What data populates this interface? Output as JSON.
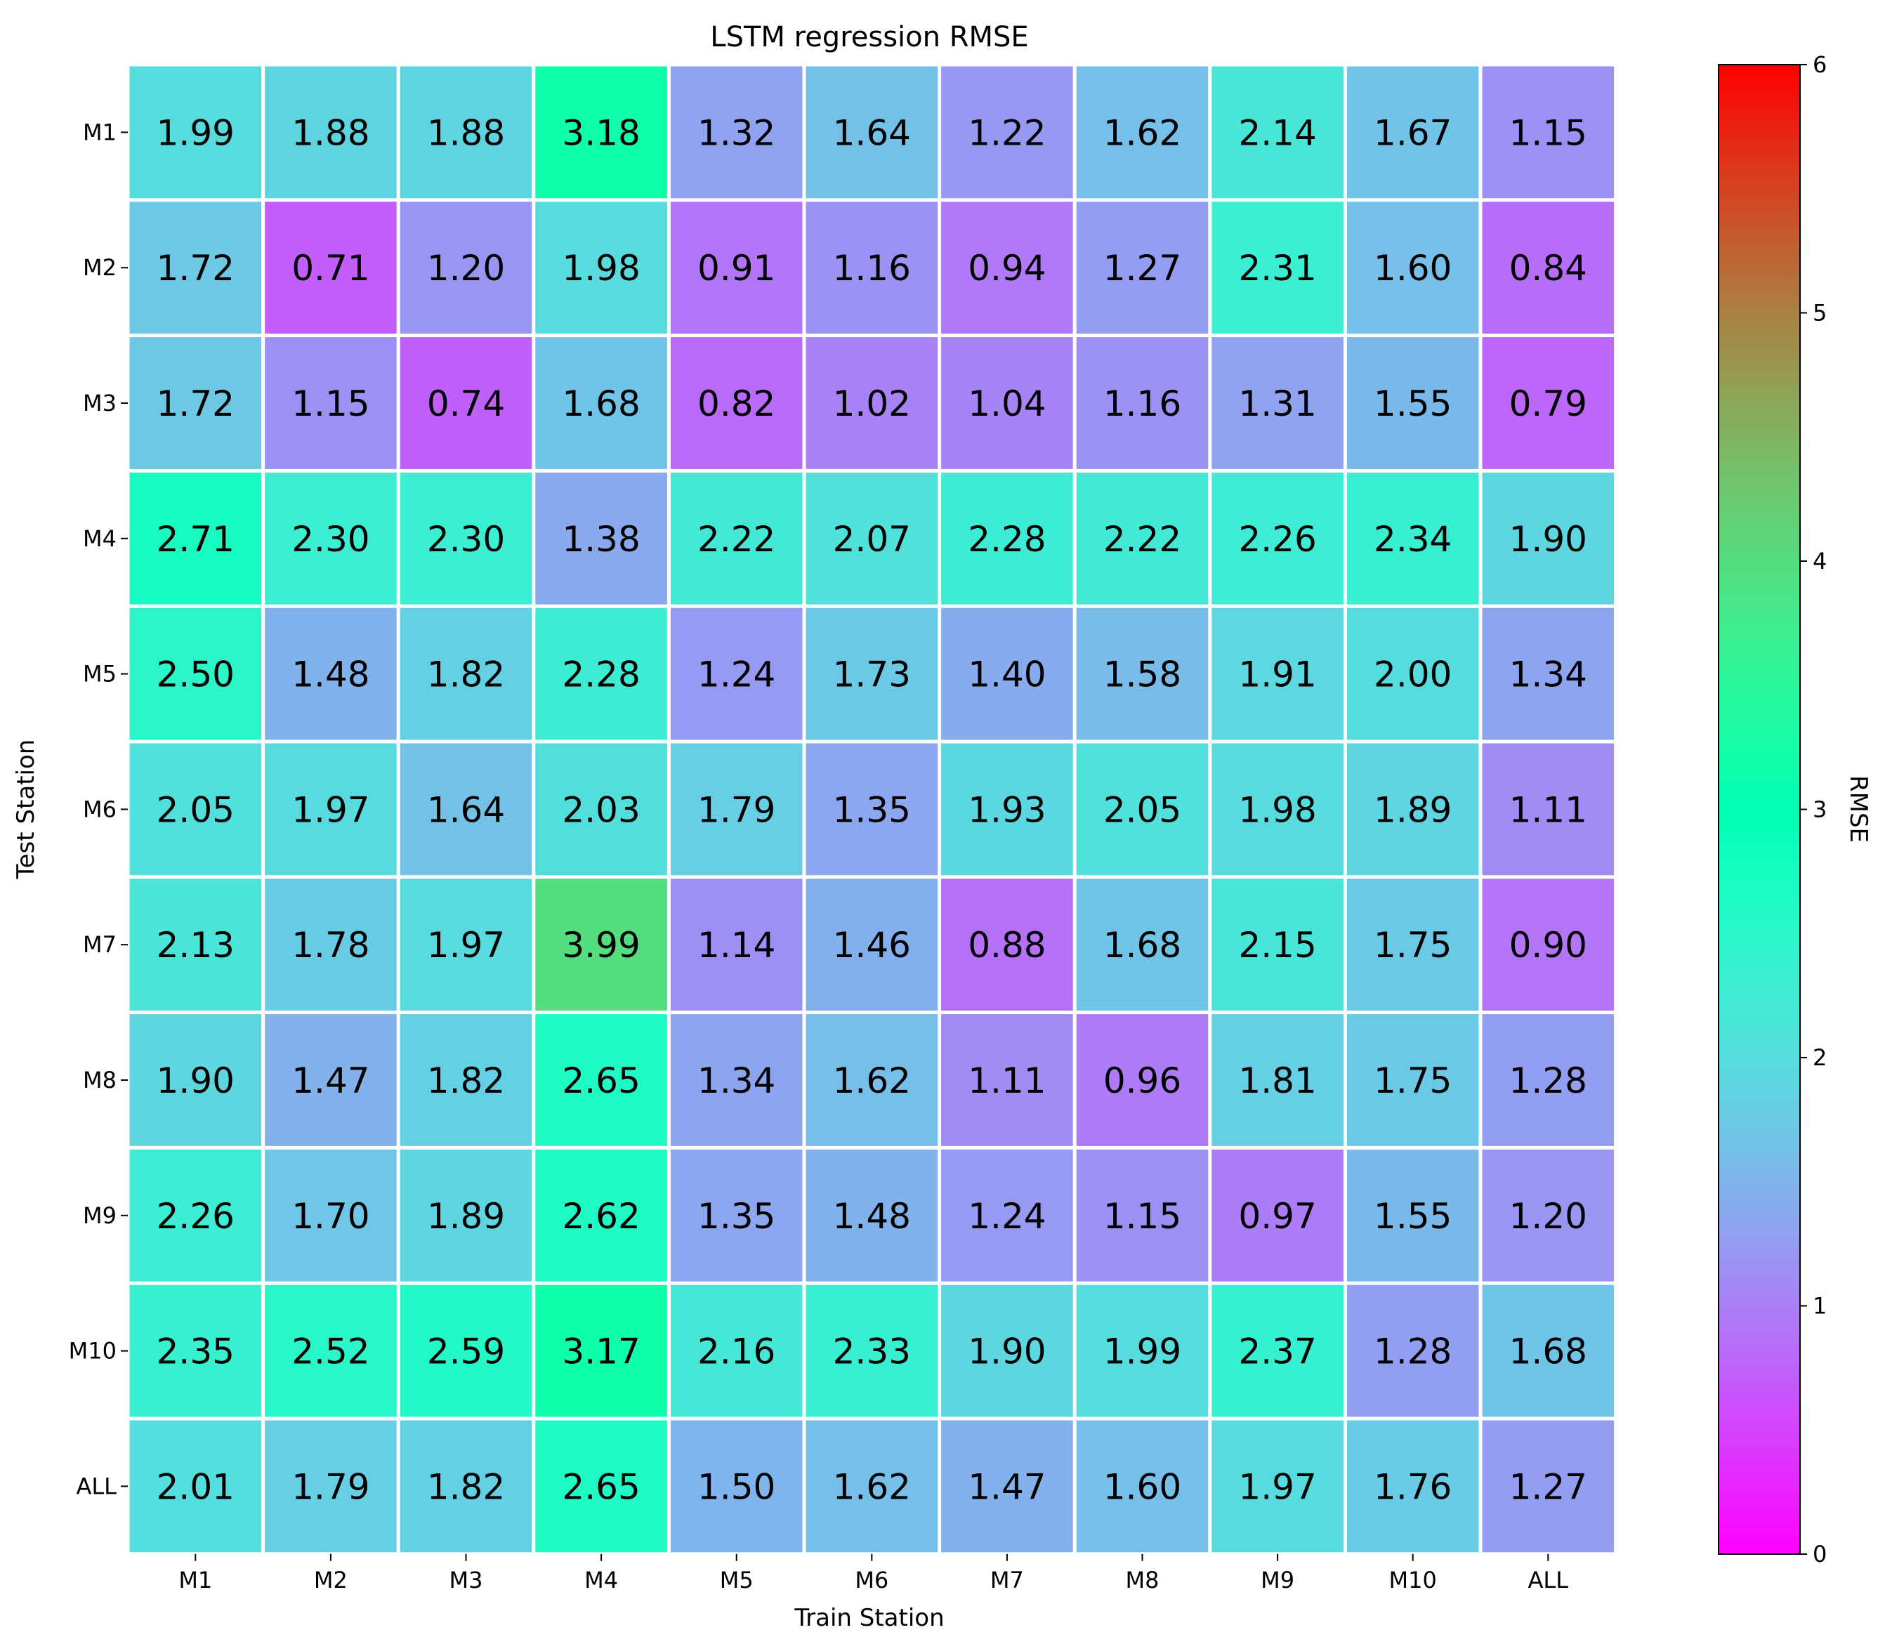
{
  "chart_data": {
    "type": "heatmap",
    "title": "LSTM regression RMSE",
    "xlabel": "Train Station",
    "ylabel": "Test Station",
    "x_categories": [
      "M1",
      "M2",
      "M3",
      "M4",
      "M5",
      "M6",
      "M7",
      "M8",
      "M9",
      "M10",
      "ALL"
    ],
    "y_categories": [
      "M1",
      "M2",
      "M3",
      "M4",
      "M5",
      "M6",
      "M7",
      "M8",
      "M9",
      "M10",
      "ALL"
    ],
    "values": [
      [
        1.99,
        1.88,
        1.88,
        3.18,
        1.32,
        1.64,
        1.22,
        1.62,
        2.14,
        1.67,
        1.15
      ],
      [
        1.72,
        0.71,
        1.2,
        1.98,
        0.91,
        1.16,
        0.94,
        1.27,
        2.31,
        1.6,
        0.84
      ],
      [
        1.72,
        1.15,
        0.74,
        1.68,
        0.82,
        1.02,
        1.04,
        1.16,
        1.31,
        1.55,
        0.79
      ],
      [
        2.71,
        2.3,
        2.3,
        1.38,
        2.22,
        2.07,
        2.28,
        2.22,
        2.26,
        2.34,
        1.9
      ],
      [
        2.5,
        1.48,
        1.82,
        2.28,
        1.24,
        1.73,
        1.4,
        1.58,
        1.91,
        2.0,
        1.34
      ],
      [
        2.05,
        1.97,
        1.64,
        2.03,
        1.79,
        1.35,
        1.93,
        2.05,
        1.98,
        1.89,
        1.11
      ],
      [
        2.13,
        1.78,
        1.97,
        3.99,
        1.14,
        1.46,
        0.88,
        1.68,
        2.15,
        1.75,
        0.9
      ],
      [
        1.9,
        1.47,
        1.82,
        2.65,
        1.34,
        1.62,
        1.11,
        0.96,
        1.81,
        1.75,
        1.28
      ],
      [
        2.26,
        1.7,
        1.89,
        2.62,
        1.35,
        1.48,
        1.24,
        1.15,
        0.97,
        1.55,
        1.2
      ],
      [
        2.35,
        2.52,
        2.59,
        3.17,
        2.16,
        2.33,
        1.9,
        1.99,
        2.37,
        1.28,
        1.68
      ],
      [
        2.01,
        1.79,
        1.82,
        2.65,
        1.5,
        1.62,
        1.47,
        1.6,
        1.97,
        1.76,
        1.27
      ]
    ],
    "value_labels": [
      [
        "1.99",
        "1.88",
        "1.88",
        "3.18",
        "1.32",
        "1.64",
        "1.22",
        "1.62",
        "2.14",
        "1.67",
        "1.15"
      ],
      [
        "1.72",
        "0.71",
        "1.20",
        "1.98",
        "0.91",
        "1.16",
        "0.94",
        "1.27",
        "2.31",
        "1.60",
        "0.84"
      ],
      [
        "1.72",
        "1.15",
        "0.74",
        "1.68",
        "0.82",
        "1.02",
        "1.04",
        "1.16",
        "1.31",
        "1.55",
        "0.79"
      ],
      [
        "2.71",
        "2.30",
        "2.30",
        "1.38",
        "2.22",
        "2.07",
        "2.28",
        "2.22",
        "2.26",
        "2.34",
        "1.90"
      ],
      [
        "2.50",
        "1.48",
        "1.82",
        "2.28",
        "1.24",
        "1.73",
        "1.40",
        "1.58",
        "1.91",
        "2.00",
        "1.34"
      ],
      [
        "2.05",
        "1.97",
        "1.64",
        "2.03",
        "1.79",
        "1.35",
        "1.93",
        "2.05",
        "1.98",
        "1.89",
        "1.11"
      ],
      [
        "2.13",
        "1.78",
        "1.97",
        "3.99",
        "1.14",
        "1.46",
        "0.88",
        "1.68",
        "2.15",
        "1.75",
        "0.90"
      ],
      [
        "1.90",
        "1.47",
        "1.82",
        "2.65",
        "1.34",
        "1.62",
        "1.11",
        "0.96",
        "1.81",
        "1.75",
        "1.28"
      ],
      [
        "2.26",
        "1.70",
        "1.89",
        "2.62",
        "1.35",
        "1.48",
        "1.24",
        "1.15",
        "0.97",
        "1.55",
        "1.20"
      ],
      [
        "2.35",
        "2.52",
        "2.59",
        "3.17",
        "2.16",
        "2.33",
        "1.90",
        "1.99",
        "2.37",
        "1.28",
        "1.68"
      ],
      [
        "2.01",
        "1.79",
        "1.82",
        "2.65",
        "1.50",
        "1.62",
        "1.47",
        "1.60",
        "1.97",
        "1.76",
        "1.27"
      ]
    ],
    "colormap": "rainbow",
    "vmin": 0,
    "vmax": 6,
    "colorbar": {
      "label": "RMSE",
      "ticks": [
        0,
        1,
        2,
        3,
        4,
        5,
        6
      ],
      "tick_labels": [
        "0",
        "1",
        "2",
        "3",
        "4",
        "5",
        "6"
      ],
      "placement": "right"
    },
    "cell_border_color": "#ffffff",
    "grid": false
  }
}
